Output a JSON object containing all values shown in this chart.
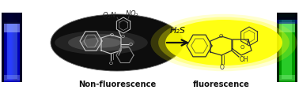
{
  "figsize": [
    3.78,
    1.15
  ],
  "dpi": 100,
  "label_left": "Non-fluorescence",
  "label_right": "fluorescence",
  "arrow_label": "H₂S",
  "label_fontsize": 7.2,
  "arrow_fontsize": 8.0,
  "dark_ellipse_color": "#111111",
  "yellow_ellipse_color": "#ffff00",
  "arrow_color": "#111111",
  "mol_color_dark": "#cccccc",
  "mol_color_light": "#1a1a1a",
  "mol_color_right": "#333333"
}
